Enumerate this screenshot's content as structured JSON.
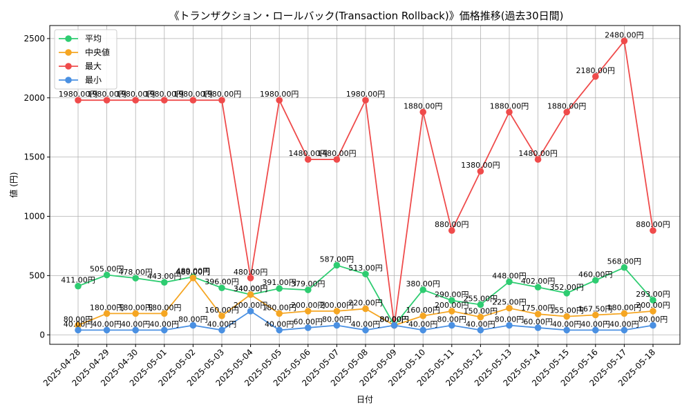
{
  "chart_data": {
    "type": "line",
    "title": "《トランザクション・ロールバック(Transaction Rollback)》価格推移(過去30日間)",
    "xlabel": "日付",
    "ylabel": "値 (円)",
    "ylim": [
      -80,
      2610
    ],
    "yticks": [
      0,
      500,
      1000,
      1500,
      2000,
      2500
    ],
    "grid": true,
    "legend_position": "top-left",
    "label_suffix": "円",
    "categories": [
      "2025-04-28",
      "2025-04-29",
      "2025-04-30",
      "2025-05-01",
      "2025-05-02",
      "2025-05-03",
      "2025-05-04",
      "2025-05-05",
      "2025-05-06",
      "2025-05-07",
      "2025-05-08",
      "2025-05-09",
      "2025-05-10",
      "2025-05-11",
      "2025-05-12",
      "2025-05-13",
      "2025-05-14",
      "2025-05-15",
      "2025-05-16",
      "2025-05-17",
      "2025-05-18"
    ],
    "series": [
      {
        "name": "平均",
        "color": "#2ecc71",
        "values": [
          411,
          505,
          478,
          443,
          489,
          396,
          340,
          391,
          379,
          587,
          513,
          80,
          380,
          290,
          255,
          448,
          402,
          352,
          460,
          568,
          293
        ]
      },
      {
        "name": "中央値",
        "color": "#f5a623",
        "values": [
          80,
          180,
          180,
          180,
          480,
          160,
          340,
          180,
          200,
          200,
          220,
          80,
          160,
          200,
          150,
          225,
          175,
          155,
          167.5,
          180,
          200
        ]
      },
      {
        "name": "最大",
        "color": "#ef4b4b",
        "values": [
          1980,
          1980,
          1980,
          1980,
          1980,
          1980,
          480,
          1980,
          1480,
          1480,
          1980,
          80,
          1880,
          880,
          1380,
          1880,
          1480,
          1880,
          2180,
          2480,
          880
        ]
      },
      {
        "name": "最小",
        "color": "#4a90e2",
        "values": [
          40,
          40,
          40,
          40,
          80,
          40,
          200,
          40,
          60,
          80,
          40,
          80,
          40,
          80,
          40,
          80,
          60,
          40,
          40,
          40,
          80
        ]
      }
    ]
  }
}
